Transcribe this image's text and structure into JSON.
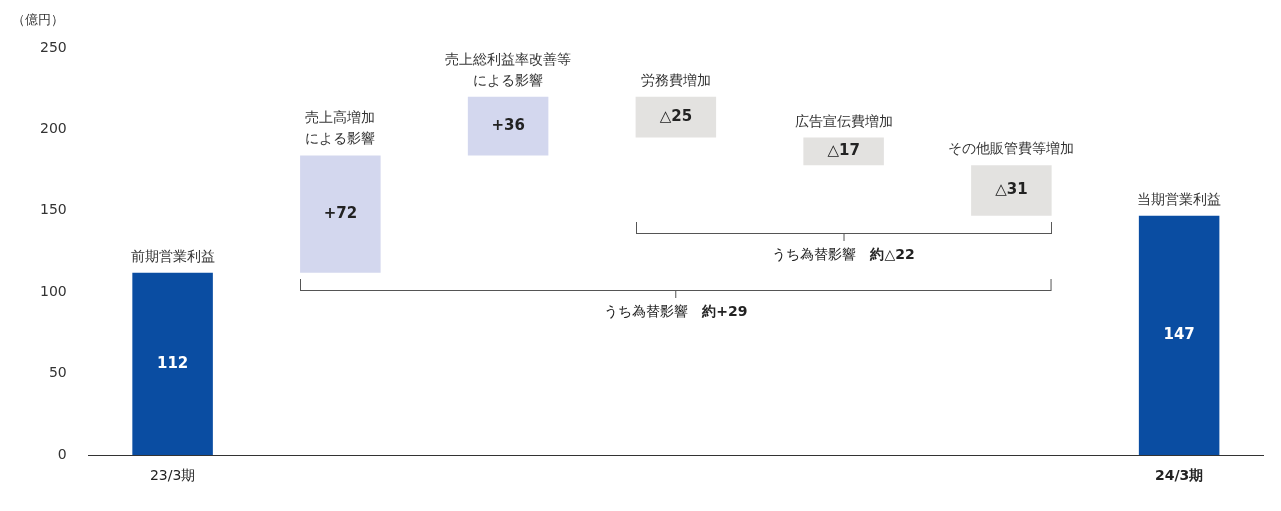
{
  "chart_data": {
    "type": "bar",
    "ylabel": "（億円）",
    "categories": [
      "前期営業利益",
      "売上高増加による影響",
      "売上総利益率改善等による影響",
      "労務費増加",
      "広告宣伝費増加",
      "その他販管費等増加",
      "当期営業利益"
    ],
    "values": [
      112,
      72,
      36,
      -25,
      -17,
      -31,
      147
    ],
    "base": [
      null,
      112,
      184,
      220,
      195,
      178,
      null
    ],
    "colors": [
      "#0a4da2",
      "#d3d7ee",
      "#d3d7ee",
      "#e3e2e0",
      "#e3e2e0",
      "#e3e2e0",
      "#0a4da2"
    ],
    "value_labels": [
      "112",
      "+72",
      "+36",
      "△25",
      "△17",
      "△31",
      "147"
    ],
    "ylim": [
      0,
      250
    ],
    "yticks": [
      0,
      50,
      100,
      150,
      200,
      250
    ],
    "grid": false,
    "legend": false,
    "annotations": [
      "23/3期",
      "24/3期",
      "うち為替影響　約△22",
      "うち為替影響　約+29"
    ]
  }
}
